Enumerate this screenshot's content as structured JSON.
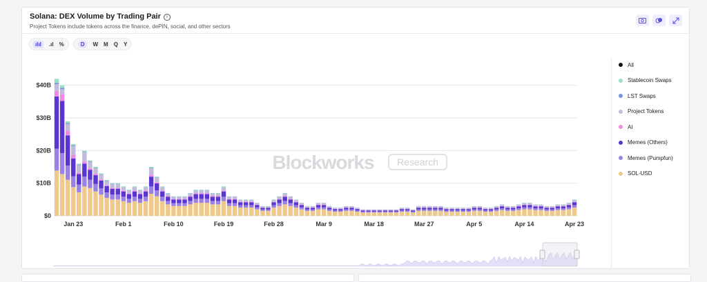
{
  "header": {
    "title": "Solana: DEX Volume by Trading Pair",
    "subtitle": "Project Tokens include tokens across the finance, dePIN, social, and other sectors"
  },
  "header_icons": [
    "camera-icon",
    "layers-icon",
    "expand-icon"
  ],
  "toolbar": {
    "intervals": [
      "D",
      "W",
      "M",
      "Q",
      "Y"
    ],
    "active_interval": "D"
  },
  "watermark": {
    "brand": "Blockworks",
    "tag": "Research"
  },
  "legend": [
    {
      "name": "All",
      "color": "#111111"
    },
    {
      "name": "Stablecoin Swaps",
      "color": "#99e0c8"
    },
    {
      "name": "LST Swaps",
      "color": "#7c93db"
    },
    {
      "name": "Project Tokens",
      "color": "#c2bcdc"
    },
    {
      "name": "AI",
      "color": "#f08ae6"
    },
    {
      "name": "Memes (Others)",
      "color": "#5b35d1"
    },
    {
      "name": "Memes (Pumpfun)",
      "color": "#9b80e6"
    },
    {
      "name": "SOL-USD",
      "color": "#f0c98a"
    }
  ],
  "chart_data": {
    "type": "bar",
    "stacked": true,
    "ylim": [
      0,
      45
    ],
    "yticks": [
      "$0",
      "$10B",
      "$20B",
      "$30B",
      "$40B"
    ],
    "xticks": [
      "Jan 23",
      "Feb 1",
      "Feb 10",
      "Feb 19",
      "Feb 28",
      "Mar 9",
      "Mar 18",
      "Mar 27",
      "Apr 5",
      "Apr 14",
      "Apr 23"
    ],
    "categories": [
      "Jan 20",
      "Jan 21",
      "Jan 22",
      "Jan 23",
      "Jan 24",
      "Jan 25",
      "Jan 26",
      "Jan 27",
      "Jan 28",
      "Jan 29",
      "Jan 30",
      "Jan 31",
      "Feb 1",
      "Feb 2",
      "Feb 3",
      "Feb 4",
      "Feb 5",
      "Feb 6",
      "Feb 7",
      "Feb 8",
      "Feb 9",
      "Feb 10",
      "Feb 11",
      "Feb 12",
      "Feb 13",
      "Feb 14",
      "Feb 15",
      "Feb 16",
      "Feb 17",
      "Feb 18",
      "Feb 19",
      "Feb 20",
      "Feb 21",
      "Feb 22",
      "Feb 23",
      "Feb 24",
      "Feb 25",
      "Feb 26",
      "Feb 27",
      "Feb 28",
      "Mar 1",
      "Mar 2",
      "Mar 3",
      "Mar 4",
      "Mar 5",
      "Mar 6",
      "Mar 7",
      "Mar 8",
      "Mar 9",
      "Mar 10",
      "Mar 11",
      "Mar 12",
      "Mar 13",
      "Mar 14",
      "Mar 15",
      "Mar 16",
      "Mar 17",
      "Mar 18",
      "Mar 19",
      "Mar 20",
      "Mar 21",
      "Mar 22",
      "Mar 23",
      "Mar 24",
      "Mar 25",
      "Mar 26",
      "Mar 27",
      "Mar 28",
      "Mar 29",
      "Mar 30",
      "Mar 31",
      "Apr 1",
      "Apr 2",
      "Apr 3",
      "Apr 4",
      "Apr 5",
      "Apr 6",
      "Apr 7",
      "Apr 8",
      "Apr 9",
      "Apr 10",
      "Apr 11",
      "Apr 12",
      "Apr 13",
      "Apr 14",
      "Apr 15",
      "Apr 16",
      "Apr 17",
      "Apr 18",
      "Apr 19",
      "Apr 20",
      "Apr 21",
      "Apr 22",
      "Apr 23"
    ],
    "totals": [
      42,
      40,
      29,
      22,
      16,
      20,
      17,
      15,
      13,
      11,
      10,
      10,
      9,
      8,
      9,
      8,
      9,
      15,
      12,
      9,
      7,
      6,
      6,
      6,
      7,
      8,
      8,
      8,
      7,
      7,
      9,
      6,
      6,
      5,
      5,
      5,
      4,
      3,
      3,
      5,
      6,
      7,
      6,
      5,
      4,
      3,
      3,
      4,
      4,
      3,
      2.5,
      2.5,
      3,
      3,
      2.5,
      2,
      2,
      2,
      2,
      2,
      2,
      2,
      2.5,
      2.5,
      2,
      3,
      3,
      3,
      3,
      3,
      2.5,
      2.5,
      2.5,
      2.5,
      2.5,
      3,
      3,
      2.5,
      2.5,
      3,
      3.5,
      3,
      3,
      3.5,
      4,
      4,
      3.5,
      3.5,
      3,
      3,
      3.5,
      3.5,
      4,
      5
    ],
    "series": [
      {
        "name": "SOL-USD",
        "share": [
          0.33,
          0.32,
          0.38,
          0.4,
          0.45,
          0.45,
          0.5,
          0.5,
          0.5,
          0.5,
          0.5,
          0.5,
          0.5,
          0.5,
          0.5,
          0.5,
          0.5,
          0.45,
          0.5,
          0.5,
          0.5,
          0.5,
          0.5,
          0.5,
          0.5,
          0.5,
          0.5,
          0.5,
          0.5,
          0.5,
          0.5,
          0.5,
          0.5,
          0.5,
          0.5,
          0.5,
          0.5,
          0.5,
          0.5,
          0.5,
          0.5,
          0.5,
          0.5,
          0.5,
          0.5,
          0.5,
          0.5,
          0.5,
          0.5,
          0.5,
          0.5,
          0.5,
          0.5,
          0.5,
          0.5,
          0.5,
          0.5,
          0.5,
          0.5,
          0.5,
          0.5,
          0.5,
          0.5,
          0.5,
          0.5,
          0.5,
          0.5,
          0.5,
          0.5,
          0.5,
          0.5,
          0.5,
          0.5,
          0.5,
          0.5,
          0.5,
          0.5,
          0.5,
          0.5,
          0.5,
          0.5,
          0.5,
          0.5,
          0.5,
          0.5,
          0.5,
          0.5,
          0.5,
          0.5,
          0.5,
          0.5,
          0.5,
          0.5,
          0.5
        ]
      },
      {
        "name": "Memes (Pumpfun)",
        "share": [
          0.16,
          0.16,
          0.15,
          0.15,
          0.15,
          0.15,
          0.15,
          0.15,
          0.15,
          0.15,
          0.15,
          0.15,
          0.15,
          0.15,
          0.15,
          0.15,
          0.15,
          0.15,
          0.15,
          0.15,
          0.15,
          0.15,
          0.15,
          0.15,
          0.15,
          0.15,
          0.15,
          0.15,
          0.15,
          0.15,
          0.15,
          0.15,
          0.15,
          0.15,
          0.15,
          0.15,
          0.15,
          0.15,
          0.15,
          0.15,
          0.15,
          0.15,
          0.15,
          0.15,
          0.15,
          0.15,
          0.15,
          0.15,
          0.15,
          0.15,
          0.15,
          0.15,
          0.15,
          0.15,
          0.15,
          0.15,
          0.15,
          0.15,
          0.15,
          0.15,
          0.15,
          0.15,
          0.15,
          0.15,
          0.15,
          0.15,
          0.15,
          0.15,
          0.15,
          0.15,
          0.15,
          0.15,
          0.15,
          0.15,
          0.15,
          0.15,
          0.15,
          0.15,
          0.15,
          0.15,
          0.15,
          0.15,
          0.15,
          0.15,
          0.15,
          0.15,
          0.15,
          0.15,
          0.15,
          0.15,
          0.15,
          0.15,
          0.15,
          0.15
        ]
      },
      {
        "name": "Memes (Others)",
        "share": [
          0.38,
          0.4,
          0.32,
          0.25,
          0.2,
          0.2,
          0.18,
          0.18,
          0.18,
          0.18,
          0.18,
          0.18,
          0.18,
          0.18,
          0.18,
          0.18,
          0.18,
          0.2,
          0.18,
          0.18,
          0.18,
          0.18,
          0.18,
          0.18,
          0.18,
          0.18,
          0.18,
          0.18,
          0.18,
          0.18,
          0.18,
          0.18,
          0.18,
          0.18,
          0.18,
          0.18,
          0.18,
          0.18,
          0.18,
          0.18,
          0.18,
          0.18,
          0.18,
          0.18,
          0.18,
          0.18,
          0.18,
          0.18,
          0.18,
          0.18,
          0.18,
          0.18,
          0.18,
          0.18,
          0.18,
          0.18,
          0.18,
          0.18,
          0.18,
          0.18,
          0.18,
          0.18,
          0.18,
          0.18,
          0.18,
          0.18,
          0.18,
          0.18,
          0.18,
          0.18,
          0.18,
          0.18,
          0.18,
          0.18,
          0.18,
          0.18,
          0.18,
          0.18,
          0.18,
          0.18,
          0.18,
          0.18,
          0.18,
          0.18,
          0.18,
          0.18,
          0.18,
          0.18,
          0.18,
          0.18,
          0.18,
          0.18,
          0.18,
          0.18
        ]
      },
      {
        "name": "AI",
        "share": [
          0.04,
          0.05,
          0.05,
          0.05,
          0.03,
          0.03,
          0.03,
          0.03,
          0.03,
          0.03,
          0.03,
          0.03,
          0.03,
          0.03,
          0.03,
          0.03,
          0.03,
          0.04,
          0.03,
          0.03,
          0.03,
          0.03,
          0.03,
          0.03,
          0.03,
          0.03,
          0.03,
          0.03,
          0.03,
          0.03,
          0.03,
          0.03,
          0.03,
          0.03,
          0.03,
          0.03,
          0.03,
          0.03,
          0.03,
          0.03,
          0.03,
          0.03,
          0.03,
          0.03,
          0.03,
          0.03,
          0.03,
          0.03,
          0.03,
          0.03,
          0.03,
          0.03,
          0.03,
          0.03,
          0.03,
          0.03,
          0.03,
          0.03,
          0.03,
          0.03,
          0.03,
          0.03,
          0.03,
          0.03,
          0.03,
          0.03,
          0.03,
          0.03,
          0.03,
          0.03,
          0.03,
          0.03,
          0.03,
          0.03,
          0.03,
          0.03,
          0.03,
          0.03,
          0.03,
          0.03,
          0.03,
          0.03,
          0.03,
          0.03,
          0.03,
          0.03,
          0.03,
          0.03,
          0.03,
          0.03,
          0.03,
          0.03,
          0.03,
          0.03
        ]
      },
      {
        "name": "Project Tokens",
        "share": [
          0.05,
          0.04,
          0.07,
          0.12,
          0.14,
          0.14,
          0.11,
          0.11,
          0.11,
          0.11,
          0.11,
          0.11,
          0.11,
          0.11,
          0.11,
          0.11,
          0.11,
          0.13,
          0.11,
          0.11,
          0.11,
          0.11,
          0.11,
          0.11,
          0.11,
          0.11,
          0.11,
          0.11,
          0.11,
          0.11,
          0.11,
          0.11,
          0.11,
          0.11,
          0.11,
          0.11,
          0.11,
          0.11,
          0.11,
          0.11,
          0.11,
          0.11,
          0.11,
          0.11,
          0.11,
          0.11,
          0.11,
          0.11,
          0.11,
          0.11,
          0.11,
          0.11,
          0.11,
          0.11,
          0.11,
          0.11,
          0.11,
          0.11,
          0.11,
          0.11,
          0.11,
          0.11,
          0.11,
          0.11,
          0.11,
          0.11,
          0.11,
          0.11,
          0.11,
          0.11,
          0.11,
          0.11,
          0.11,
          0.11,
          0.11,
          0.11,
          0.11,
          0.11,
          0.11,
          0.11,
          0.11,
          0.11,
          0.11,
          0.11,
          0.11,
          0.11,
          0.11,
          0.11,
          0.11,
          0.11,
          0.11,
          0.11,
          0.11,
          0.11
        ]
      },
      {
        "name": "LST Swaps",
        "share": [
          0.01,
          0.01,
          0.01,
          0.01,
          0.01,
          0.01,
          0.01,
          0.01,
          0.01,
          0.01,
          0.01,
          0.01,
          0.01,
          0.01,
          0.01,
          0.01,
          0.01,
          0.01,
          0.01,
          0.01,
          0.01,
          0.01,
          0.01,
          0.01,
          0.01,
          0.01,
          0.01,
          0.01,
          0.01,
          0.01,
          0.01,
          0.01,
          0.01,
          0.01,
          0.01,
          0.01,
          0.01,
          0.01,
          0.01,
          0.01,
          0.01,
          0.01,
          0.01,
          0.01,
          0.01,
          0.01,
          0.01,
          0.01,
          0.01,
          0.01,
          0.01,
          0.01,
          0.01,
          0.01,
          0.01,
          0.01,
          0.01,
          0.01,
          0.01,
          0.01,
          0.01,
          0.01,
          0.01,
          0.01,
          0.01,
          0.01,
          0.01,
          0.01,
          0.01,
          0.01,
          0.01,
          0.01,
          0.01,
          0.01,
          0.01,
          0.01,
          0.01,
          0.01,
          0.01,
          0.01,
          0.01,
          0.01,
          0.01,
          0.01,
          0.01,
          0.01,
          0.01,
          0.01,
          0.01,
          0.01,
          0.01,
          0.01,
          0.01,
          0.01
        ]
      },
      {
        "name": "Stablecoin Swaps",
        "share": [
          0.03,
          0.02,
          0.02,
          0.02,
          0.02,
          0.02,
          0.02,
          0.02,
          0.02,
          0.02,
          0.02,
          0.02,
          0.02,
          0.02,
          0.02,
          0.02,
          0.02,
          0.02,
          0.02,
          0.02,
          0.02,
          0.02,
          0.02,
          0.02,
          0.02,
          0.02,
          0.02,
          0.02,
          0.02,
          0.02,
          0.02,
          0.02,
          0.02,
          0.02,
          0.02,
          0.02,
          0.02,
          0.02,
          0.02,
          0.02,
          0.02,
          0.02,
          0.02,
          0.02,
          0.02,
          0.02,
          0.02,
          0.02,
          0.02,
          0.02,
          0.02,
          0.02,
          0.02,
          0.02,
          0.02,
          0.02,
          0.02,
          0.02,
          0.02,
          0.02,
          0.02,
          0.02,
          0.02,
          0.02,
          0.02,
          0.02,
          0.02,
          0.02,
          0.02,
          0.02,
          0.02,
          0.02,
          0.02,
          0.02,
          0.02,
          0.02,
          0.02,
          0.02,
          0.02,
          0.02,
          0.02,
          0.02,
          0.02,
          0.02,
          0.02,
          0.02,
          0.02,
          0.02,
          0.02,
          0.02,
          0.02,
          0.02,
          0.02,
          0.02
        ]
      }
    ],
    "grid": true,
    "legend_position": "right"
  }
}
